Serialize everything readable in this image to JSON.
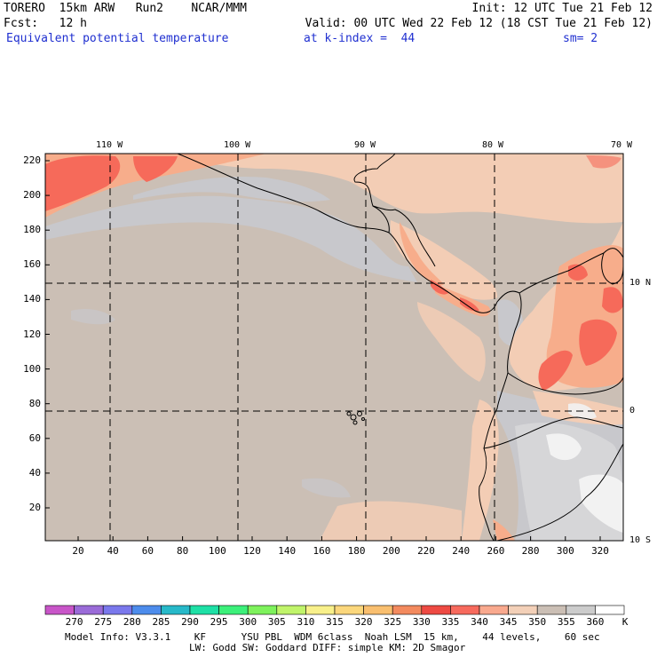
{
  "header": {
    "line1_left": "TORERO  15km ARW   Run2    NCAR/MMM",
    "line1_right": "Init: 12 UTC Tue 21 Feb 12",
    "line2_left": "Fcst:   12 h",
    "line2_right": "Valid: 00 UTC Wed 22 Feb 12 (18 CST Tue 21 Feb 12)",
    "field_name": "Equivalent potential temperature",
    "level": "at k-index =  44",
    "smoothing": "sm= 2"
  },
  "map": {
    "longitude_labels": [
      "110 W",
      "100 W",
      "90 W",
      "80 W",
      "70 W"
    ],
    "latitude_labels": [
      "10 N",
      "0",
      "10 S"
    ],
    "y_ticks": [
      "220",
      "200",
      "180",
      "160",
      "140",
      "120",
      "100",
      "80",
      "60",
      "40",
      "20"
    ],
    "x_ticks": [
      "20",
      "40",
      "60",
      "80",
      "100",
      "120",
      "140",
      "160",
      "180",
      "200",
      "220",
      "240",
      "260",
      "280",
      "300",
      "320"
    ],
    "colors": {
      "background": "#cbbfb5",
      "cool": "#c8c8cc",
      "warm1": "#f3cdb5",
      "warm2": "#f7ad8b",
      "warm3": "#f66a5a",
      "white": "#f2f2f2"
    }
  },
  "colorbar": {
    "levels": [
      "270",
      "275",
      "280",
      "285",
      "290",
      "295",
      "300",
      "305",
      "310",
      "315",
      "320",
      "325",
      "330",
      "335",
      "340",
      "345",
      "350",
      "355",
      "360"
    ],
    "unit": "K",
    "colors": [
      "#c855c8",
      "#9a6bd8",
      "#7a78ec",
      "#4d8cec",
      "#27b9c9",
      "#1ee0a6",
      "#3cf07a",
      "#7ef25c",
      "#c0f46a",
      "#f8f08a",
      "#fbd77c",
      "#f9bf6f",
      "#f38a5e",
      "#ee4a43",
      "#f76a5d",
      "#f9a98e",
      "#f3d0b8",
      "#cbbfb5",
      "#cccccc",
      "#ffffff"
    ]
  },
  "footer": {
    "line1": "Model Info: V3.3.1    KF      YSU PBL  WDM 6class  Noah LSM  15 km,    44 levels,    60 sec",
    "line2": "LW: Godd SW: Goddard DIFF: simple KM: 2D Smagor"
  }
}
